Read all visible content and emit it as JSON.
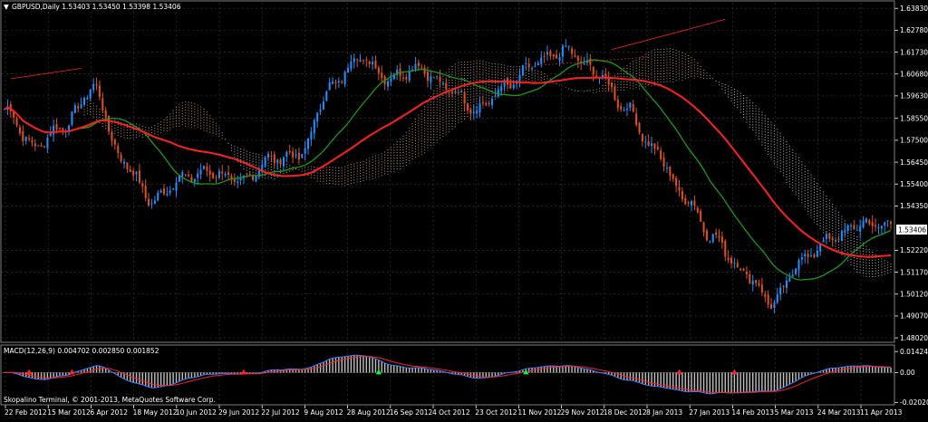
{
  "header": {
    "main_title": "GBPUSD,Daily  1.53403 1.53450 1.53398 1.53406",
    "macd_title": "MACD(12,26,9) 0.004702 0.002850 0.001852",
    "copyright": "Skopalino Terminal, © 2001-2013, MetaQuotes Software Corp."
  },
  "colors": {
    "background": "#000000",
    "grid": "#3a3a3a",
    "bull_candle": "#1e90ff",
    "bear_candle": "#e0501c",
    "slow_ma": "#ff2020",
    "mid_ma": "#1a9a1a",
    "cloud_bull": "#c8a58a",
    "cloud_bear": "#c8c8c8",
    "macd_hist": "#c0c0c0",
    "macd_line": "#3c7cff",
    "signal_line": "#ff2020",
    "current_price_box": "#ffffff"
  },
  "chart_data": [
    {
      "type": "candlestick",
      "symbol": "GBPUSD",
      "timeframe": "Daily",
      "current_price": 1.53406,
      "ylim": [
        1.48,
        1.64
      ],
      "y_ticks": [
        "1.63830",
        "1.62780",
        "1.61730",
        "1.60680",
        "1.59630",
        "1.58550",
        "1.57500",
        "1.56450",
        "1.55400",
        "1.54350",
        "1.52220",
        "1.51170",
        "1.50120",
        "1.49070",
        "1.48020"
      ],
      "current_price_label": "1.53406",
      "x_ticks": [
        "22 Feb 2012",
        "15 Mar 2012",
        "6 Apr 2012",
        "18 May 2012",
        "10 Jun 2012",
        "29 Jun 2012",
        "22 Jul 2012",
        "9 Aug 2012",
        "28 Aug 2012",
        "16 Sep 2012",
        "4 Oct 2012",
        "23 Oct 2012",
        "11 Nov 2012",
        "29 Nov 2012",
        "18 Dec 2012",
        "8 Jan 2013",
        "27 Jan 2013",
        "14 Feb 2013",
        "5 Mar 2013",
        "24 Mar 2013",
        "11 Apr 2013"
      ],
      "close_anchors": [
        1.59,
        1.572,
        1.582,
        1.6,
        1.565,
        1.546,
        1.557,
        1.56,
        1.555,
        1.566,
        1.568,
        1.6,
        1.615,
        1.605,
        1.61,
        1.6,
        1.59,
        1.601,
        1.612,
        1.618,
        1.608,
        1.591,
        1.57,
        1.548,
        1.528,
        1.512,
        1.497,
        1.518,
        1.528,
        1.535,
        1.534
      ],
      "overlays": [
        "slow moving average (red)",
        "medium moving average (green)",
        "Ichimoku cloud",
        "trend lines"
      ]
    },
    {
      "type": "macd",
      "params": "12,26,9",
      "values": {
        "main": 0.004702,
        "signal": 0.00285,
        "histogram": 0.001852
      },
      "ylim": [
        -0.021,
        0.016
      ],
      "y_ticks": [
        "0.014247",
        "0.00",
        "-0.020201"
      ]
    }
  ]
}
